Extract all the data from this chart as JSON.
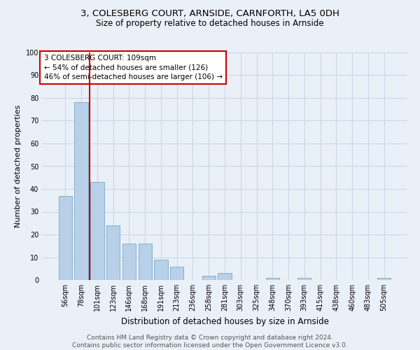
{
  "title1": "3, COLESBERG COURT, ARNSIDE, CARNFORTH, LA5 0DH",
  "title2": "Size of property relative to detached houses in Arnside",
  "xlabel": "Distribution of detached houses by size in Arnside",
  "ylabel": "Number of detached properties",
  "categories": [
    "56sqm",
    "78sqm",
    "101sqm",
    "123sqm",
    "146sqm",
    "168sqm",
    "191sqm",
    "213sqm",
    "236sqm",
    "258sqm",
    "281sqm",
    "303sqm",
    "325sqm",
    "348sqm",
    "370sqm",
    "393sqm",
    "415sqm",
    "438sqm",
    "460sqm",
    "483sqm",
    "505sqm"
  ],
  "values": [
    37,
    78,
    43,
    24,
    16,
    16,
    9,
    6,
    0,
    2,
    3,
    0,
    0,
    1,
    0,
    1,
    0,
    0,
    0,
    0,
    1
  ],
  "bar_color": "#b8d0e8",
  "bar_edge_color": "#7aaac8",
  "grid_color": "#c8d8e8",
  "background_color": "#eaf0f8",
  "vline_color": "#cc0000",
  "annotation_text": "3 COLESBERG COURT: 109sqm\n← 54% of detached houses are smaller (126)\n46% of semi-detached houses are larger (106) →",
  "annotation_box_color": "#ffffff",
  "annotation_box_edge": "#cc0000",
  "footer": "Contains HM Land Registry data © Crown copyright and database right 2024.\nContains public sector information licensed under the Open Government Licence v3.0.",
  "ylim": [
    0,
    100
  ],
  "yticks": [
    0,
    10,
    20,
    30,
    40,
    50,
    60,
    70,
    80,
    90,
    100
  ],
  "title1_fontsize": 9.5,
  "title2_fontsize": 8.5,
  "ylabel_fontsize": 8,
  "xlabel_fontsize": 8.5,
  "tick_fontsize": 7,
  "footer_fontsize": 6.5,
  "ann_fontsize": 7.5
}
